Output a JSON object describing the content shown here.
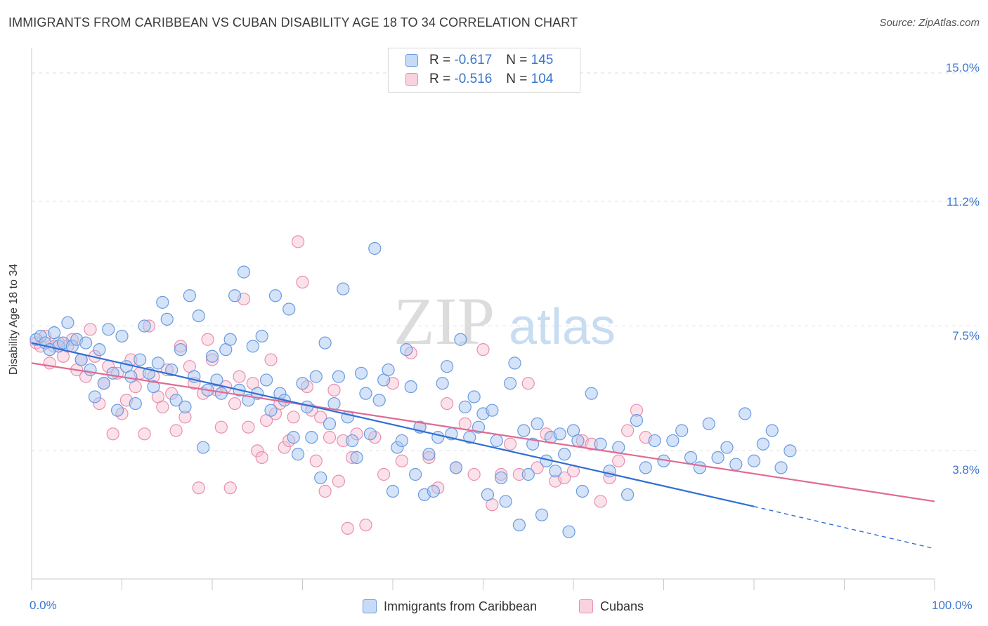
{
  "title": "IMMIGRANTS FROM CARIBBEAN VS CUBAN DISABILITY AGE 18 TO 34 CORRELATION CHART",
  "source": "Source: ZipAtlas.com",
  "watermark": {
    "bold": "ZIP",
    "light": "atlas"
  },
  "legend": {
    "rows": [
      {
        "r_label": "R =",
        "r_value": "-0.617",
        "n_label": "N =",
        "n_value": "145"
      },
      {
        "r_label": "R =",
        "r_value": "-0.516",
        "n_label": "N =",
        "n_value": "104"
      }
    ]
  },
  "colors": {
    "blue_fill": "#a9c8f0",
    "blue_stroke": "#6a9be0",
    "blue_line": "#2f6fd6",
    "pink_fill": "#f6bfd0",
    "pink_stroke": "#e98fae",
    "pink_line": "#e06a93",
    "tick_text": "#3a76d0",
    "grid": "#dddddd"
  },
  "chart_data": {
    "type": "scatter",
    "title": "IMMIGRANTS FROM CARIBBEAN VS CUBAN DISABILITY AGE 18 TO 34 CORRELATION CHART",
    "xlabel": "",
    "ylabel": "Disability Age 18 to 34",
    "xlim": [
      0,
      100
    ],
    "ylim": [
      0,
      15.5
    ],
    "x_tick_labels": [
      "0.0%",
      "100.0%"
    ],
    "y_ticks": [
      3.8,
      7.5,
      11.2,
      15.0
    ],
    "y_tick_labels": [
      "3.8%",
      "7.5%",
      "11.2%",
      "15.0%"
    ],
    "grid": true,
    "legend_position": "top-center",
    "series": [
      {
        "name": "Immigrants from Caribbean",
        "color": "#6a9be0",
        "trend": {
          "x": [
            0,
            80
          ],
          "y": [
            7.0,
            2.15
          ],
          "dashed_extension": {
            "x": [
              80,
              100
            ],
            "y": [
              2.15,
              0.9
            ]
          }
        },
        "points": [
          [
            0.5,
            7.1
          ],
          [
            1,
            7.2
          ],
          [
            1.5,
            7.0
          ],
          [
            2,
            6.8
          ],
          [
            2.5,
            7.3
          ],
          [
            3,
            6.9
          ],
          [
            3.5,
            7.0
          ],
          [
            4,
            7.6
          ],
          [
            4.5,
            6.9
          ],
          [
            5,
            7.1
          ],
          [
            5.5,
            6.5
          ],
          [
            6,
            7.0
          ],
          [
            6.5,
            6.2
          ],
          [
            7,
            5.4
          ],
          [
            7.5,
            6.8
          ],
          [
            8,
            5.8
          ],
          [
            8.5,
            7.4
          ],
          [
            9,
            6.1
          ],
          [
            9.5,
            5.0
          ],
          [
            10,
            7.2
          ],
          [
            10.5,
            6.3
          ],
          [
            11,
            6.0
          ],
          [
            11.5,
            5.2
          ],
          [
            12,
            6.5
          ],
          [
            12.5,
            7.5
          ],
          [
            13,
            6.1
          ],
          [
            13.5,
            5.7
          ],
          [
            14,
            6.4
          ],
          [
            14.5,
            8.2
          ],
          [
            15,
            7.7
          ],
          [
            15.5,
            6.2
          ],
          [
            16,
            5.3
          ],
          [
            16.5,
            6.8
          ],
          [
            17,
            5.1
          ],
          [
            17.5,
            8.4
          ],
          [
            18,
            6.0
          ],
          [
            18.5,
            7.8
          ],
          [
            19,
            3.9
          ],
          [
            19.5,
            5.6
          ],
          [
            20,
            6.6
          ],
          [
            20.5,
            5.9
          ],
          [
            21,
            5.5
          ],
          [
            21.5,
            6.8
          ],
          [
            22,
            7.1
          ],
          [
            22.5,
            8.4
          ],
          [
            23,
            5.6
          ],
          [
            23.5,
            9.1
          ],
          [
            24,
            5.3
          ],
          [
            24.5,
            6.9
          ],
          [
            25,
            5.5
          ],
          [
            25.5,
            7.2
          ],
          [
            26,
            5.9
          ],
          [
            26.5,
            5.0
          ],
          [
            27,
            8.4
          ],
          [
            27.5,
            5.5
          ],
          [
            28,
            5.3
          ],
          [
            28.5,
            8.0
          ],
          [
            29,
            4.2
          ],
          [
            29.5,
            3.7
          ],
          [
            30,
            5.8
          ],
          [
            30.5,
            5.1
          ],
          [
            31,
            4.2
          ],
          [
            31.5,
            6.0
          ],
          [
            32,
            3.0
          ],
          [
            32.5,
            7.0
          ],
          [
            33,
            4.6
          ],
          [
            33.5,
            5.2
          ],
          [
            34,
            6.0
          ],
          [
            34.5,
            8.6
          ],
          [
            35,
            4.8
          ],
          [
            35.5,
            4.1
          ],
          [
            36,
            3.6
          ],
          [
            36.5,
            6.1
          ],
          [
            37,
            5.5
          ],
          [
            37.5,
            4.3
          ],
          [
            38,
            9.8
          ],
          [
            38.5,
            5.3
          ],
          [
            39,
            5.9
          ],
          [
            39.5,
            6.2
          ],
          [
            40,
            2.6
          ],
          [
            40.5,
            3.9
          ],
          [
            41,
            4.1
          ],
          [
            41.5,
            6.8
          ],
          [
            42,
            5.7
          ],
          [
            42.5,
            3.1
          ],
          [
            43,
            4.5
          ],
          [
            43.5,
            2.5
          ],
          [
            44,
            3.7
          ],
          [
            44.5,
            2.6
          ],
          [
            45,
            4.2
          ],
          [
            45.5,
            5.8
          ],
          [
            46,
            6.3
          ],
          [
            46.5,
            4.3
          ],
          [
            47,
            3.3
          ],
          [
            47.5,
            7.1
          ],
          [
            48,
            5.1
          ],
          [
            48.5,
            4.2
          ],
          [
            49,
            5.4
          ],
          [
            49.5,
            4.5
          ],
          [
            50,
            4.9
          ],
          [
            50.5,
            2.5
          ],
          [
            51,
            5.0
          ],
          [
            51.5,
            4.1
          ],
          [
            52,
            3.0
          ],
          [
            52.5,
            2.3
          ],
          [
            53,
            5.8
          ],
          [
            53.5,
            6.4
          ],
          [
            54,
            1.6
          ],
          [
            54.5,
            4.4
          ],
          [
            55,
            3.1
          ],
          [
            55.5,
            4.0
          ],
          [
            56,
            4.6
          ],
          [
            56.5,
            1.9
          ],
          [
            57,
            3.5
          ],
          [
            57.5,
            4.2
          ],
          [
            58,
            3.2
          ],
          [
            58.5,
            4.3
          ],
          [
            59,
            3.7
          ],
          [
            59.5,
            1.4
          ],
          [
            60,
            4.4
          ],
          [
            60.5,
            4.1
          ],
          [
            61,
            2.6
          ],
          [
            62,
            5.5
          ],
          [
            63,
            4.0
          ],
          [
            64,
            3.2
          ],
          [
            65,
            3.9
          ],
          [
            66,
            2.5
          ],
          [
            67,
            4.7
          ],
          [
            68,
            3.3
          ],
          [
            69,
            4.1
          ],
          [
            70,
            3.5
          ],
          [
            71,
            4.1
          ],
          [
            72,
            4.4
          ],
          [
            73,
            3.6
          ],
          [
            74,
            3.3
          ],
          [
            75,
            4.6
          ],
          [
            76,
            3.6
          ],
          [
            77,
            3.9
          ],
          [
            78,
            3.4
          ],
          [
            79,
            4.9
          ],
          [
            80,
            3.5
          ],
          [
            81,
            4.0
          ],
          [
            82,
            4.4
          ],
          [
            83,
            3.3
          ],
          [
            84,
            3.8
          ]
        ]
      },
      {
        "name": "Cubans",
        "color": "#e98fae",
        "trend": {
          "x": [
            0,
            100
          ],
          "y": [
            6.4,
            2.3
          ]
        },
        "points": [
          [
            0.5,
            7.0
          ],
          [
            1,
            6.9
          ],
          [
            1.5,
            7.2
          ],
          [
            2,
            6.4
          ],
          [
            2.5,
            6.9
          ],
          [
            3,
            7.0
          ],
          [
            3.5,
            6.6
          ],
          [
            4,
            6.9
          ],
          [
            4.5,
            7.1
          ],
          [
            5,
            6.2
          ],
          [
            5.5,
            6.5
          ],
          [
            6,
            6.0
          ],
          [
            6.5,
            7.4
          ],
          [
            7,
            6.6
          ],
          [
            7.5,
            5.2
          ],
          [
            8,
            5.8
          ],
          [
            8.5,
            6.3
          ],
          [
            9,
            4.3
          ],
          [
            9.5,
            6.1
          ],
          [
            10,
            4.9
          ],
          [
            10.5,
            5.3
          ],
          [
            11,
            6.5
          ],
          [
            11.5,
            5.7
          ],
          [
            12,
            6.1
          ],
          [
            12.5,
            4.3
          ],
          [
            13,
            7.5
          ],
          [
            13.5,
            6.0
          ],
          [
            14,
            5.4
          ],
          [
            14.5,
            5.1
          ],
          [
            15,
            6.2
          ],
          [
            15.5,
            5.5
          ],
          [
            16,
            4.4
          ],
          [
            16.5,
            6.9
          ],
          [
            17,
            4.8
          ],
          [
            17.5,
            6.3
          ],
          [
            18,
            5.8
          ],
          [
            18.5,
            2.7
          ],
          [
            19,
            5.5
          ],
          [
            19.5,
            7.1
          ],
          [
            20,
            6.5
          ],
          [
            20.5,
            5.6
          ],
          [
            21,
            4.5
          ],
          [
            21.5,
            5.7
          ],
          [
            22,
            2.7
          ],
          [
            22.5,
            5.2
          ],
          [
            23,
            6.0
          ],
          [
            23.5,
            8.3
          ],
          [
            24,
            4.5
          ],
          [
            24.5,
            5.8
          ],
          [
            25,
            3.8
          ],
          [
            25.5,
            3.6
          ],
          [
            26,
            4.7
          ],
          [
            26.5,
            6.5
          ],
          [
            27,
            4.9
          ],
          [
            27.5,
            5.2
          ],
          [
            28,
            3.9
          ],
          [
            28.5,
            4.1
          ],
          [
            29,
            4.8
          ],
          [
            29.5,
            10.0
          ],
          [
            30,
            8.8
          ],
          [
            30.5,
            5.7
          ],
          [
            31,
            5.0
          ],
          [
            31.5,
            3.5
          ],
          [
            32,
            4.8
          ],
          [
            32.5,
            2.6
          ],
          [
            33,
            4.2
          ],
          [
            33.5,
            5.6
          ],
          [
            34,
            2.9
          ],
          [
            34.5,
            4.1
          ],
          [
            35,
            1.5
          ],
          [
            35.5,
            3.6
          ],
          [
            36,
            4.3
          ],
          [
            37,
            1.6
          ],
          [
            38,
            4.2
          ],
          [
            39,
            3.1
          ],
          [
            40,
            5.8
          ],
          [
            41,
            3.5
          ],
          [
            42,
            6.7
          ],
          [
            43,
            4.5
          ],
          [
            44,
            3.6
          ],
          [
            45,
            2.7
          ],
          [
            46,
            5.2
          ],
          [
            47,
            3.3
          ],
          [
            48,
            4.6
          ],
          [
            49,
            3.1
          ],
          [
            50,
            6.8
          ],
          [
            51,
            2.2
          ],
          [
            52,
            3.1
          ],
          [
            53,
            4.0
          ],
          [
            54,
            3.1
          ],
          [
            55,
            5.8
          ],
          [
            56,
            3.3
          ],
          [
            57,
            4.3
          ],
          [
            58,
            2.9
          ],
          [
            59,
            3.0
          ],
          [
            60,
            3.2
          ],
          [
            61,
            4.1
          ],
          [
            62,
            4.0
          ],
          [
            63,
            2.3
          ],
          [
            64,
            3.0
          ],
          [
            65,
            3.5
          ],
          [
            66,
            4.4
          ],
          [
            67,
            5.0
          ],
          [
            68,
            4.2
          ]
        ]
      }
    ]
  }
}
